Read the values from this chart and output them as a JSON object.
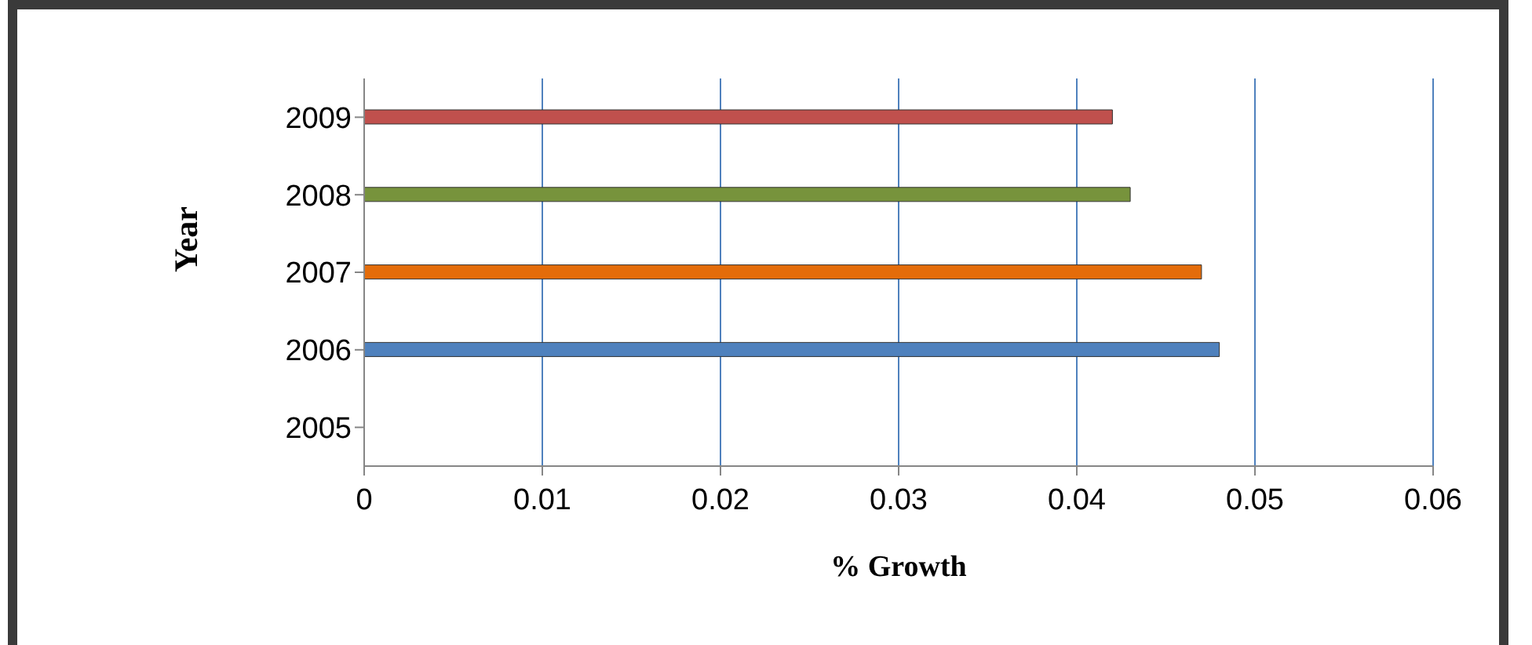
{
  "chart_data": {
    "type": "bar",
    "orientation": "horizontal",
    "xlabel": "% Growth",
    "ylabel": "Year",
    "categories": [
      "2009",
      "2008",
      "2007",
      "2006",
      "2005"
    ],
    "values": [
      0.042,
      0.043,
      0.047,
      0.048,
      null
    ],
    "colors": [
      "#c0504d",
      "#77933c",
      "#e46c0a",
      "#4f81bd",
      null
    ],
    "xlim": [
      0,
      0.06
    ],
    "xticks": [
      0,
      0.01,
      0.02,
      0.03,
      0.04,
      0.05,
      0.06
    ],
    "grid": "x"
  }
}
